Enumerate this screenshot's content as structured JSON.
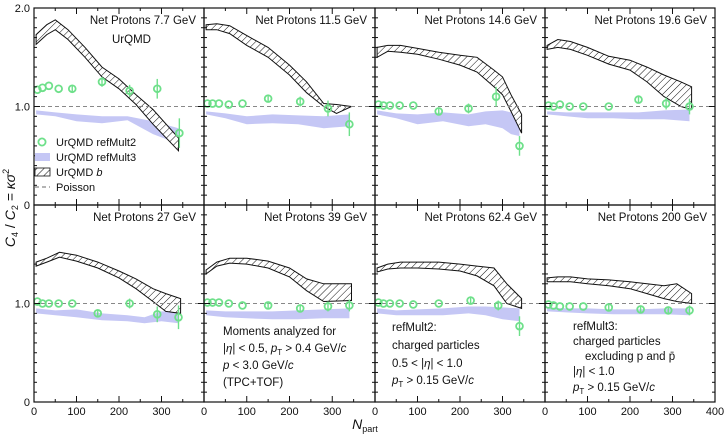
{
  "chart_data": {
    "type": "scatter",
    "layout": "grid 2 rows x 4 columns",
    "ylabel": "C4 / C2 = κσ²",
    "xlabel": "N_part",
    "ylim": [
      0,
      2.0
    ],
    "xlim": [
      0,
      400
    ],
    "y_ticks": [
      "0",
      "1.0",
      "2.0"
    ],
    "x_ticks": [
      "0",
      "100",
      "200",
      "300",
      "400"
    ],
    "x_ticks_first_panel": [
      "0",
      "100",
      "200",
      "300"
    ],
    "reference_line": {
      "label": "Poisson",
      "y": 1.0
    },
    "model_label": "UrQMD",
    "legend": {
      "refmult2": "UrQMD refMult2",
      "refmult3": "UrQMD refMult3",
      "b": "UrQMD b",
      "b_prefix": "UrQMD ",
      "b_italic": "b",
      "poisson": "Poisson"
    },
    "panels": [
      {
        "title": "Net Protons 7.7 GeV",
        "points": {
          "x": [
            8,
            20,
            35,
            58,
            90,
            160,
            225,
            290,
            342
          ],
          "y": [
            1.17,
            1.19,
            1.21,
            1.18,
            1.18,
            1.25,
            1.16,
            1.18,
            0.73
          ],
          "err": [
            0.02,
            0.02,
            0.02,
            0.02,
            0.03,
            0.05,
            0.06,
            0.1,
            0.15
          ]
        },
        "band3": {
          "x": [
            5,
            50,
            100,
            160,
            220,
            280,
            340
          ],
          "lo": [
            0.92,
            0.9,
            0.85,
            0.83,
            0.86,
            0.72,
            0.62
          ],
          "hi": [
            0.96,
            0.94,
            0.92,
            0.9,
            0.9,
            0.85,
            0.78
          ]
        },
        "bandb": {
          "x": [
            5,
            30,
            50,
            80,
            120,
            160,
            200,
            240,
            280,
            340
          ],
          "lo": [
            1.63,
            1.73,
            1.78,
            1.68,
            1.5,
            1.3,
            1.18,
            1.02,
            0.82,
            0.55
          ],
          "hi": [
            1.73,
            1.83,
            1.88,
            1.78,
            1.6,
            1.4,
            1.28,
            1.12,
            0.97,
            0.68
          ]
        }
      },
      {
        "title": "Net Protons 11.5 GeV",
        "points": {
          "x": [
            8,
            20,
            35,
            58,
            90,
            150,
            225,
            290,
            340
          ],
          "y": [
            1.03,
            1.03,
            1.03,
            1.02,
            1.03,
            1.08,
            1.05,
            0.98,
            0.82
          ],
          "err": [
            0.02,
            0.02,
            0.02,
            0.02,
            0.02,
            0.03,
            0.05,
            0.08,
            0.12
          ]
        },
        "band3": {
          "x": [
            5,
            50,
            100,
            160,
            220,
            280,
            340
          ],
          "lo": [
            0.92,
            0.88,
            0.82,
            0.83,
            0.82,
            0.78,
            0.8
          ],
          "hi": [
            0.95,
            0.93,
            0.9,
            0.92,
            0.91,
            0.9,
            0.92
          ]
        },
        "bandb": {
          "x": [
            5,
            30,
            60,
            100,
            150,
            200,
            240,
            280,
            310,
            345
          ],
          "lo": [
            1.78,
            1.78,
            1.74,
            1.62,
            1.5,
            1.32,
            1.14,
            1.0,
            0.93,
            1.0
          ],
          "hi": [
            1.83,
            1.84,
            1.82,
            1.72,
            1.6,
            1.42,
            1.25,
            1.03,
            1.02,
            1.0
          ]
        }
      },
      {
        "title": "Net Protons 14.6 GeV",
        "points": {
          "x": [
            8,
            20,
            35,
            58,
            90,
            150,
            220,
            285,
            340
          ],
          "y": [
            1.02,
            1.01,
            1.01,
            1.01,
            1.01,
            0.95,
            0.98,
            1.1,
            0.6
          ],
          "err": [
            0.02,
            0.02,
            0.02,
            0.02,
            0.02,
            0.03,
            0.05,
            0.1,
            0.1
          ]
        },
        "band3": {
          "x": [
            5,
            50,
            100,
            160,
            220,
            260,
            300,
            320,
            340
          ],
          "lo": [
            0.92,
            0.88,
            0.82,
            0.85,
            0.8,
            0.82,
            0.78,
            0.72,
            0.7
          ],
          "hi": [
            0.96,
            0.93,
            0.92,
            0.94,
            0.92,
            0.95,
            0.96,
            0.94,
            0.9
          ]
        },
        "bandb": {
          "x": [
            5,
            30,
            60,
            100,
            150,
            200,
            240,
            280,
            300,
            320,
            345
          ],
          "lo": [
            1.5,
            1.56,
            1.55,
            1.53,
            1.48,
            1.42,
            1.35,
            1.2,
            1.12,
            0.95,
            0.73
          ],
          "hi": [
            1.6,
            1.62,
            1.62,
            1.59,
            1.55,
            1.52,
            1.5,
            1.37,
            1.3,
            1.12,
            0.92
          ]
        }
      },
      {
        "title": "Net Protons 19.6 GeV",
        "points": {
          "x": [
            8,
            20,
            35,
            58,
            90,
            150,
            220,
            285,
            340
          ],
          "y": [
            1.01,
            1.0,
            1.02,
            1.0,
            1.0,
            1.0,
            1.07,
            1.03,
            1.0
          ],
          "err": [
            0.02,
            0.02,
            0.02,
            0.02,
            0.02,
            0.02,
            0.04,
            0.06,
            0.08
          ]
        },
        "band3": {
          "x": [
            5,
            50,
            100,
            160,
            220,
            280,
            340
          ],
          "lo": [
            0.92,
            0.9,
            0.88,
            0.88,
            0.87,
            0.87,
            0.85
          ],
          "hi": [
            0.95,
            0.94,
            0.94,
            0.94,
            0.94,
            0.96,
            0.97
          ]
        },
        "bandb": {
          "x": [
            5,
            30,
            60,
            100,
            150,
            200,
            240,
            280,
            320,
            345
          ],
          "lo": [
            1.58,
            1.6,
            1.58,
            1.52,
            1.43,
            1.37,
            1.25,
            1.1,
            1.0,
            0.97
          ],
          "hi": [
            1.62,
            1.68,
            1.66,
            1.6,
            1.51,
            1.47,
            1.4,
            1.32,
            1.25,
            1.2
          ]
        }
      },
      {
        "title": "Net Protons 27 GeV",
        "points": {
          "x": [
            8,
            20,
            35,
            58,
            90,
            150,
            225,
            290,
            340
          ],
          "y": [
            1.02,
            1.0,
            1.0,
            1.0,
            1.0,
            0.9,
            1.0,
            0.89,
            0.86
          ],
          "err": [
            0.02,
            0.02,
            0.02,
            0.02,
            0.02,
            0.03,
            0.05,
            0.08,
            0.12
          ]
        },
        "band3": {
          "x": [
            5,
            50,
            100,
            160,
            220,
            260,
            300,
            340
          ],
          "lo": [
            0.9,
            0.88,
            0.86,
            0.83,
            0.82,
            0.8,
            0.82,
            0.8
          ],
          "hi": [
            0.95,
            0.93,
            0.94,
            0.9,
            0.88,
            0.86,
            0.92,
            0.92
          ]
        },
        "bandb": {
          "x": [
            5,
            30,
            60,
            100,
            150,
            200,
            240,
            280,
            310,
            345
          ],
          "lo": [
            1.38,
            1.42,
            1.47,
            1.43,
            1.36,
            1.26,
            1.15,
            1.02,
            0.92,
            0.9
          ],
          "hi": [
            1.42,
            1.46,
            1.52,
            1.49,
            1.42,
            1.33,
            1.25,
            1.15,
            1.1,
            1.05
          ]
        }
      },
      {
        "title": "Net Protons 39 GeV",
        "points": {
          "x": [
            8,
            20,
            35,
            58,
            90,
            150,
            225,
            290,
            340
          ],
          "y": [
            1.01,
            1.01,
            1.01,
            1.0,
            0.98,
            0.98,
            0.95,
            0.97,
            0.98
          ],
          "err": [
            0.02,
            0.02,
            0.02,
            0.02,
            0.02,
            0.03,
            0.04,
            0.05,
            0.06
          ]
        },
        "band3": {
          "x": [
            5,
            50,
            100,
            160,
            220,
            280,
            340
          ],
          "lo": [
            0.88,
            0.86,
            0.85,
            0.84,
            0.84,
            0.85,
            0.85
          ],
          "hi": [
            0.93,
            0.92,
            0.92,
            0.92,
            0.93,
            0.94,
            0.95
          ]
        },
        "bandb": {
          "x": [
            5,
            30,
            60,
            100,
            150,
            200,
            240,
            280,
            345
          ],
          "lo": [
            1.3,
            1.38,
            1.41,
            1.4,
            1.36,
            1.27,
            1.13,
            1.02,
            1.03
          ],
          "hi": [
            1.34,
            1.42,
            1.46,
            1.46,
            1.43,
            1.36,
            1.25,
            1.2,
            1.2
          ]
        }
      },
      {
        "title": "Net Protons 62.4 GeV",
        "points": {
          "x": [
            8,
            20,
            35,
            58,
            90,
            150,
            225,
            290,
            340
          ],
          "y": [
            1.01,
            1.0,
            1.0,
            1.0,
            0.99,
            1.0,
            1.03,
            0.98,
            0.77
          ],
          "err": [
            0.02,
            0.02,
            0.02,
            0.02,
            0.02,
            0.02,
            0.03,
            0.05,
            0.1
          ]
        },
        "band3": {
          "x": [
            5,
            50,
            100,
            160,
            220,
            260,
            300,
            340
          ],
          "lo": [
            0.9,
            0.88,
            0.88,
            0.88,
            0.9,
            0.88,
            0.84,
            0.82
          ],
          "hi": [
            0.95,
            0.93,
            0.94,
            0.95,
            0.97,
            0.97,
            0.96,
            0.95
          ]
        },
        "bandb": {
          "x": [
            5,
            30,
            60,
            100,
            150,
            200,
            240,
            280,
            310,
            345
          ],
          "lo": [
            1.32,
            1.35,
            1.36,
            1.36,
            1.35,
            1.33,
            1.28,
            1.18,
            1.0,
            0.95
          ],
          "hi": [
            1.36,
            1.4,
            1.42,
            1.42,
            1.42,
            1.4,
            1.38,
            1.36,
            1.2,
            1.05
          ]
        }
      },
      {
        "title": "Net Protons 200 GeV",
        "points": {
          "x": [
            8,
            20,
            35,
            58,
            90,
            150,
            225,
            290,
            340
          ],
          "y": [
            0.99,
            0.98,
            0.97,
            0.97,
            0.97,
            0.96,
            0.94,
            0.93,
            0.93
          ],
          "err": [
            0.02,
            0.02,
            0.02,
            0.02,
            0.02,
            0.03,
            0.03,
            0.04,
            0.05
          ]
        },
        "band3": {
          "x": [
            5,
            50,
            100,
            160,
            220,
            280,
            340
          ],
          "lo": [
            0.92,
            0.91,
            0.9,
            0.89,
            0.89,
            0.89,
            0.88
          ],
          "hi": [
            0.96,
            0.95,
            0.95,
            0.94,
            0.94,
            0.95,
            0.95
          ]
        },
        "bandb": {
          "x": [
            5,
            30,
            60,
            100,
            150,
            200,
            240,
            280,
            310,
            345
          ],
          "lo": [
            1.22,
            1.22,
            1.22,
            1.2,
            1.18,
            1.15,
            1.1,
            1.05,
            1.02,
            1.0
          ],
          "hi": [
            1.26,
            1.27,
            1.27,
            1.25,
            1.24,
            1.22,
            1.2,
            1.18,
            1.2,
            1.1
          ]
        }
      }
    ],
    "notes": {
      "p5": {
        "l1": "Moments analyzed for",
        "l2_bar": "|",
        "l2_eta": "η",
        "l2_a": "| < 0.5, ",
        "l2_pt": "p",
        "l2_sub": "T",
        "l2_b": " > 0.4 GeV/",
        "l2_c": "c",
        "l3_p": "p",
        "l3_a": " < 3.0 GeV/",
        "l3_c": "c",
        "l4": "(TPC+TOF)"
      },
      "p6": {
        "l1": "refMult2:",
        "l2": "charged particles",
        "l3_a": "0.5 < |",
        "l3_eta": "η",
        "l3_b": "| < 1.0",
        "l4_pt": "p",
        "l4_sub": "T",
        "l4_b": " > 0.15 GeV/",
        "l4_c": "c"
      },
      "p7": {
        "l1": "refMult3:",
        "l2": "charged particles",
        "l3": "excluding p and p̄",
        "l4_a": "|",
        "l4_eta": "η",
        "l4_b": "| < 1.0",
        "l5_pt": "p",
        "l5_sub": "T",
        "l5_b": " > 0.15 GeV/",
        "l5_c": "c"
      }
    },
    "axis_title_y": {
      "c4": "C",
      "c4_sub": "4",
      "slash": " / ",
      "c2": "C",
      "c2_sub": "2",
      "eq": " = κσ",
      "sup": "2"
    },
    "axis_title_x": {
      "n": "N",
      "sub": "part"
    }
  },
  "colors": {
    "points": "#6ee08a",
    "band3": "#c5c7f5",
    "hatch": "#111111",
    "poisson": "#888888",
    "frame": "#111111"
  }
}
